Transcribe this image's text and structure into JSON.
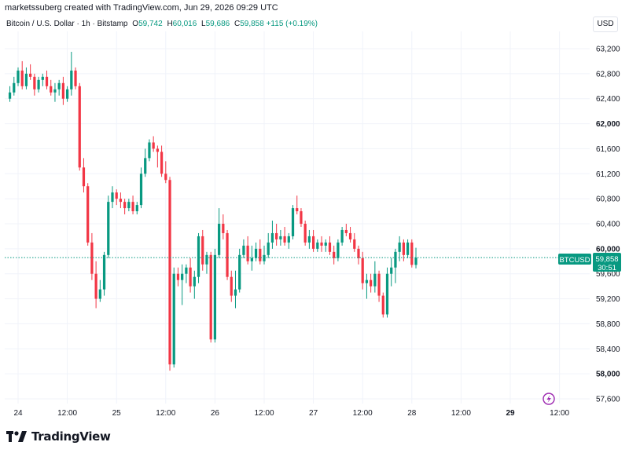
{
  "header": {
    "caption": "marketssuberg created with TradingView.com, Jun 29, 2026 09:29 UTC"
  },
  "legend": {
    "symbol": "Bitcoin / U.S. Dollar · 1h · Bitstamp",
    "open_key": "O",
    "open": "59,742",
    "high_key": "H",
    "high": "60,016",
    "low_key": "L",
    "low": "59,686",
    "close_key": "C",
    "close": "59,858",
    "change": "+115 (+0.19%)"
  },
  "currency_button": "USD",
  "price_tag": {
    "ticker": "BTCUSD",
    "price": "59,858",
    "countdown": "30:51"
  },
  "branding": {
    "text": "TradingView"
  },
  "colors": {
    "up": "#089981",
    "down": "#f23645",
    "grid": "#f0f3fa",
    "axis_text": "#131722",
    "last_price_line": "#089981"
  },
  "chart_data": {
    "type": "candlestick",
    "title": "",
    "symbol": "Bitcoin / U.S. Dollar",
    "interval": "1h",
    "exchange": "Bitstamp",
    "ylim": [
      57400,
      63400
    ],
    "y_ticks": [
      {
        "value": 63200,
        "label": "63,200"
      },
      {
        "value": 62800,
        "label": "62,800"
      },
      {
        "value": 62400,
        "label": "62,400"
      },
      {
        "value": 62000,
        "label": "62,000",
        "bold": true
      },
      {
        "value": 61600,
        "label": "61,600"
      },
      {
        "value": 61200,
        "label": "61,200"
      },
      {
        "value": 60800,
        "label": "60,800"
      },
      {
        "value": 60400,
        "label": "60,400"
      },
      {
        "value": 60000,
        "label": "60,000",
        "bold": true
      },
      {
        "value": 59600,
        "label": "59,600"
      },
      {
        "value": 59200,
        "label": "59,200"
      },
      {
        "value": 58800,
        "label": "58,800"
      },
      {
        "value": 58400,
        "label": "58,400"
      },
      {
        "value": 58000,
        "label": "58,000",
        "bold": true
      },
      {
        "value": 57600,
        "label": "57,600"
      }
    ],
    "x_ticks": [
      {
        "hour": 0,
        "label": "24"
      },
      {
        "hour": 12,
        "label": "12:00"
      },
      {
        "hour": 24,
        "label": "25"
      },
      {
        "hour": 36,
        "label": "12:00"
      },
      {
        "hour": 48,
        "label": "26"
      },
      {
        "hour": 60,
        "label": "12:00"
      },
      {
        "hour": 72,
        "label": "27"
      },
      {
        "hour": 84,
        "label": "12:00"
      },
      {
        "hour": 96,
        "label": "28"
      },
      {
        "hour": 108,
        "label": "12:00"
      },
      {
        "hour": 120,
        "label": "29",
        "bold": true
      },
      {
        "hour": 132,
        "label": "12:00"
      }
    ],
    "last_price": 59858,
    "grid": true,
    "ohlc": [
      [
        62400,
        62600,
        62350,
        62500
      ],
      [
        62500,
        62750,
        62450,
        62650
      ],
      [
        62650,
        62900,
        62600,
        62850
      ],
      [
        62850,
        63000,
        62550,
        62600
      ],
      [
        62600,
        62900,
        62550,
        62800
      ],
      [
        62800,
        62950,
        62700,
        62750
      ],
      [
        62750,
        62800,
        62450,
        62550
      ],
      [
        62550,
        62750,
        62500,
        62700
      ],
      [
        62700,
        62800,
        62600,
        62750
      ],
      [
        62750,
        62850,
        62550,
        62600
      ],
      [
        62600,
        62700,
        62450,
        62500
      ],
      [
        62500,
        62650,
        62350,
        62550
      ],
      [
        62550,
        62700,
        62450,
        62650
      ],
      [
        62650,
        62750,
        62300,
        62400
      ],
      [
        62400,
        62600,
        62350,
        62550
      ],
      [
        62550,
        63150,
        62450,
        62850
      ],
      [
        62850,
        62900,
        62550,
        62600
      ],
      [
        62600,
        62650,
        61250,
        61300
      ],
      [
        61300,
        61450,
        60900,
        61000
      ],
      [
        61000,
        61050,
        60050,
        60100
      ],
      [
        60100,
        60250,
        59500,
        59600
      ],
      [
        59600,
        59800,
        59050,
        59200
      ],
      [
        59200,
        59500,
        59150,
        59350
      ],
      [
        59350,
        59950,
        59250,
        59900
      ],
      [
        59900,
        60850,
        59850,
        60750
      ],
      [
        60750,
        61000,
        60650,
        60900
      ],
      [
        60900,
        60950,
        60700,
        60800
      ],
      [
        60800,
        60900,
        60650,
        60750
      ],
      [
        60750,
        60800,
        60550,
        60650
      ],
      [
        60650,
        60800,
        60600,
        60750
      ],
      [
        60750,
        60850,
        60550,
        60600
      ],
      [
        60600,
        60750,
        60550,
        60700
      ],
      [
        60700,
        61300,
        60650,
        61200
      ],
      [
        61200,
        61600,
        61150,
        61450
      ],
      [
        61450,
        61750,
        61400,
        61700
      ],
      [
        61700,
        61800,
        61550,
        61600
      ],
      [
        61600,
        61650,
        61300,
        61550
      ],
      [
        61550,
        61650,
        61150,
        61200
      ],
      [
        61200,
        61400,
        61050,
        61100
      ],
      [
        61100,
        61150,
        58050,
        58150
      ],
      [
        58150,
        59700,
        58100,
        59600
      ],
      [
        59600,
        59700,
        59400,
        59500
      ],
      [
        59500,
        59750,
        59100,
        59600
      ],
      [
        59600,
        59750,
        59450,
        59700
      ],
      [
        59700,
        59850,
        59300,
        59400
      ],
      [
        59400,
        59650,
        59200,
        59550
      ],
      [
        59550,
        60250,
        59450,
        60200
      ],
      [
        60200,
        60300,
        59650,
        59750
      ],
      [
        59750,
        59950,
        59600,
        59900
      ],
      [
        59900,
        59950,
        58500,
        58550
      ],
      [
        58550,
        60000,
        58500,
        59900
      ],
      [
        59900,
        60650,
        59850,
        60400
      ],
      [
        60400,
        60550,
        60150,
        60250
      ],
      [
        60250,
        60300,
        59500,
        59550
      ],
      [
        59550,
        59650,
        59150,
        59250
      ],
      [
        59250,
        59650,
        59050,
        59350
      ],
      [
        59350,
        60000,
        59300,
        59900
      ],
      [
        59900,
        60150,
        59850,
        60050
      ],
      [
        60050,
        60200,
        59750,
        59800
      ],
      [
        59800,
        60050,
        59650,
        59850
      ],
      [
        59850,
        60100,
        59800,
        60000
      ],
      [
        60000,
        60150,
        59750,
        59800
      ],
      [
        59800,
        60050,
        59750,
        59900
      ],
      [
        59900,
        60250,
        59850,
        60100
      ],
      [
        60100,
        60450,
        60000,
        60250
      ],
      [
        60250,
        60400,
        60050,
        60150
      ],
      [
        60150,
        60300,
        60050,
        60200
      ],
      [
        60200,
        60350,
        60050,
        60100
      ],
      [
        60100,
        60250,
        60000,
        60200
      ],
      [
        60200,
        60700,
        60150,
        60650
      ],
      [
        60650,
        60850,
        60550,
        60600
      ],
      [
        60600,
        60650,
        60350,
        60400
      ],
      [
        60400,
        60450,
        60050,
        60100
      ],
      [
        60100,
        60300,
        60000,
        60200
      ],
      [
        60200,
        60300,
        59950,
        60000
      ],
      [
        60000,
        60150,
        59950,
        60100
      ],
      [
        60100,
        60200,
        59950,
        60050
      ],
      [
        60050,
        60150,
        59950,
        60100
      ],
      [
        60100,
        60200,
        59900,
        59950
      ],
      [
        59950,
        60050,
        59750,
        59850
      ],
      [
        59850,
        60150,
        59800,
        60100
      ],
      [
        60100,
        60350,
        60050,
        60300
      ],
      [
        60300,
        60400,
        60200,
        60250
      ],
      [
        60250,
        60350,
        60100,
        60150
      ],
      [
        60150,
        60250,
        59950,
        60000
      ],
      [
        60000,
        60050,
        59750,
        59850
      ],
      [
        59850,
        59950,
        59350,
        59450
      ],
      [
        59450,
        59600,
        59200,
        59500
      ],
      [
        59500,
        59600,
        59300,
        59400
      ],
      [
        59400,
        59800,
        59300,
        59600
      ],
      [
        59600,
        59650,
        59150,
        59250
      ],
      [
        59250,
        59300,
        58900,
        58950
      ],
      [
        58950,
        59700,
        58900,
        59600
      ],
      [
        59600,
        59850,
        59400,
        59700
      ],
      [
        59700,
        60000,
        59450,
        59950
      ],
      [
        59950,
        60200,
        59800,
        60100
      ],
      [
        60100,
        60150,
        59800,
        59900
      ],
      [
        59900,
        60150,
        59850,
        60100
      ],
      [
        60100,
        60150,
        59700,
        59742
      ],
      [
        59742,
        60016,
        59686,
        59858
      ]
    ]
  }
}
